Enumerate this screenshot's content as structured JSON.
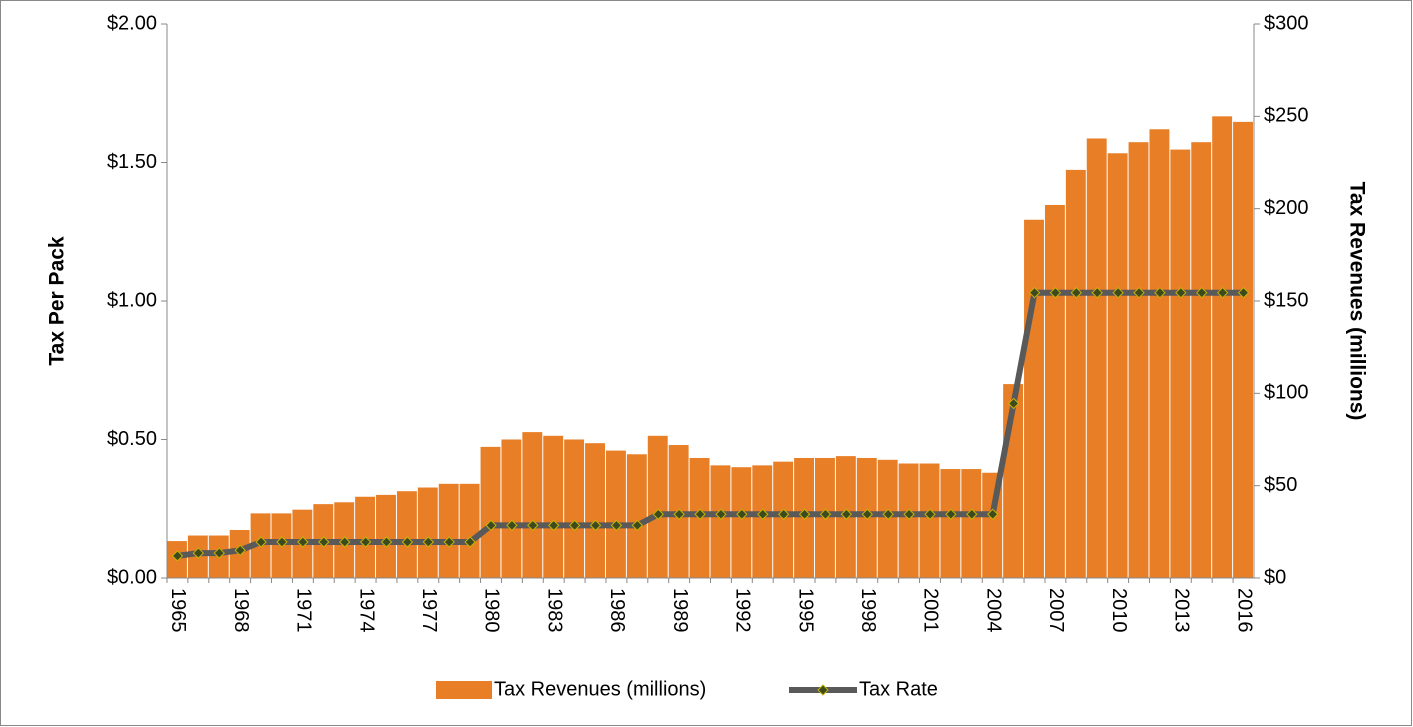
{
  "chart_data": {
    "type": "bar",
    "categories": [
      "1965",
      null,
      null,
      "1968",
      null,
      null,
      "1971",
      null,
      null,
      "1974",
      null,
      null,
      "1977",
      null,
      null,
      "1980",
      null,
      null,
      "1983",
      null,
      null,
      "1986",
      null,
      null,
      "1989",
      null,
      null,
      "1992",
      null,
      null,
      "1995",
      null,
      null,
      "1998",
      null,
      null,
      "2001",
      null,
      null,
      "2004",
      null,
      null,
      "2007",
      null,
      null,
      "2010",
      null,
      null,
      "2013",
      null,
      null,
      "2016"
    ],
    "y_label": "Tax Per Pack",
    "y2_label": "Tax Revenues (millions)",
    "ylim": [
      0,
      2
    ],
    "yticks": [
      {
        "value": 0,
        "label": "$0.00"
      },
      {
        "value": 0.5,
        "label": "$0.50"
      },
      {
        "value": 1,
        "label": "$1.00"
      },
      {
        "value": 1.5,
        "label": "$1.50"
      },
      {
        "value": 2,
        "label": "$2.00"
      }
    ],
    "y2lim": [
      0,
      300
    ],
    "y2ticks": [
      {
        "value": 0,
        "label": "$0"
      },
      {
        "value": 50,
        "label": "$50"
      },
      {
        "value": 100,
        "label": "$100"
      },
      {
        "value": 150,
        "label": "$150"
      },
      {
        "value": 200,
        "label": "$200"
      },
      {
        "value": 250,
        "label": "$250"
      },
      {
        "value": 300,
        "label": "$300"
      }
    ],
    "legend": "bottom",
    "series": [
      {
        "name": "Tax Revenues (millions)",
        "type": "bar",
        "axis": "y2",
        "color": "#e87e26",
        "values": [
          20,
          23,
          23,
          26,
          35,
          35,
          37,
          40,
          41,
          44,
          45,
          47,
          49,
          51,
          51,
          71,
          75,
          79,
          77,
          75,
          73,
          69,
          67,
          77,
          72,
          65,
          61,
          60,
          61,
          63,
          65,
          65,
          66,
          65,
          64,
          62,
          62,
          59,
          59,
          57,
          105,
          194,
          202,
          221,
          238,
          230,
          236,
          243,
          232,
          236,
          250,
          247
        ]
      },
      {
        "name": "Tax Rate",
        "type": "line",
        "color": "#595959",
        "marker_color": "#3d4a1e",
        "values": [
          0.08,
          0.09,
          0.09,
          0.1,
          0.13,
          0.13,
          0.13,
          0.13,
          0.13,
          0.13,
          0.13,
          0.13,
          0.13,
          0.13,
          0.13,
          0.19,
          0.19,
          0.19,
          0.19,
          0.19,
          0.19,
          0.19,
          0.19,
          0.23,
          0.23,
          0.23,
          0.23,
          0.23,
          0.23,
          0.23,
          0.23,
          0.23,
          0.23,
          0.23,
          0.23,
          0.23,
          0.23,
          0.23,
          0.23,
          0.23,
          0.63,
          1.03,
          1.03,
          1.03,
          1.03,
          1.03,
          1.03,
          1.03,
          1.03,
          1.03,
          1.03,
          1.03
        ]
      }
    ]
  }
}
